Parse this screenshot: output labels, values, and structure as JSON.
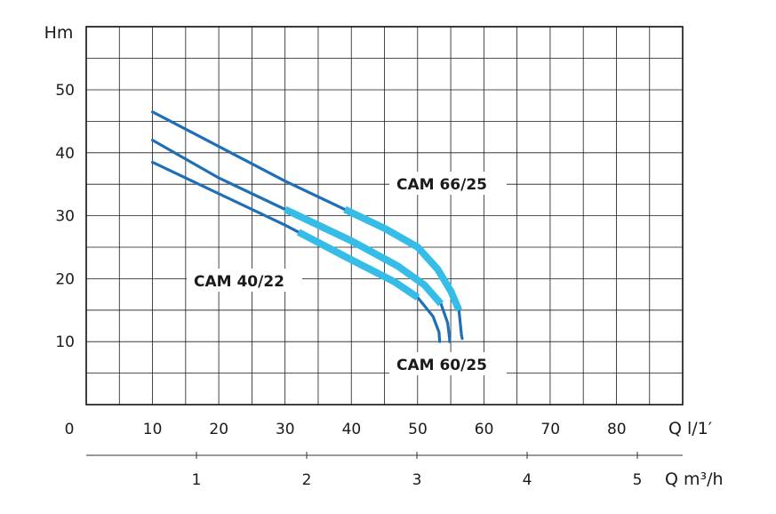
{
  "chart_data": {
    "type": "line",
    "title": "",
    "ylabel": "Hm",
    "xlabel": "Q l/1′",
    "x2label": "Q m³/h",
    "xlim": [
      0,
      90
    ],
    "ylim": [
      0,
      60
    ],
    "x_ticks": [
      0,
      10,
      20,
      30,
      40,
      50,
      60,
      70,
      80
    ],
    "y_ticks": [
      10,
      20,
      30,
      40,
      50
    ],
    "x2_ticks": [
      1,
      2,
      3,
      4,
      5
    ],
    "grid": true,
    "colors": {
      "dark": "#1f6fb6",
      "light": "#35bde8"
    },
    "series": [
      {
        "name": "CAM 66/25",
        "points": [
          [
            10,
            46.5
          ],
          [
            20,
            41
          ],
          [
            30,
            35.5
          ],
          [
            39,
            31
          ],
          [
            45,
            28
          ],
          [
            50,
            25
          ],
          [
            53,
            21.5
          ],
          [
            55,
            18
          ],
          [
            56.2,
            15
          ],
          [
            56.6,
            11
          ],
          [
            56.7,
            10.5
          ]
        ],
        "light_from": 39
      },
      {
        "name": "CAM 60/25",
        "points": [
          [
            10,
            42
          ],
          [
            20,
            36
          ],
          [
            30,
            31
          ],
          [
            40,
            26
          ],
          [
            47,
            22
          ],
          [
            51,
            19
          ],
          [
            53.5,
            16
          ],
          [
            54.5,
            13
          ],
          [
            54.8,
            10.5
          ],
          [
            54.8,
            10
          ]
        ],
        "light_from": 30
      },
      {
        "name": "CAM 40/22",
        "points": [
          [
            10,
            38.5
          ],
          [
            20,
            33.5
          ],
          [
            30,
            28.5
          ],
          [
            40,
            23
          ],
          [
            46.5,
            19.5
          ],
          [
            50,
            17
          ],
          [
            52.3,
            14
          ],
          [
            53.2,
            11.5
          ],
          [
            53.3,
            10
          ]
        ],
        "light_from": 32
      }
    ]
  }
}
